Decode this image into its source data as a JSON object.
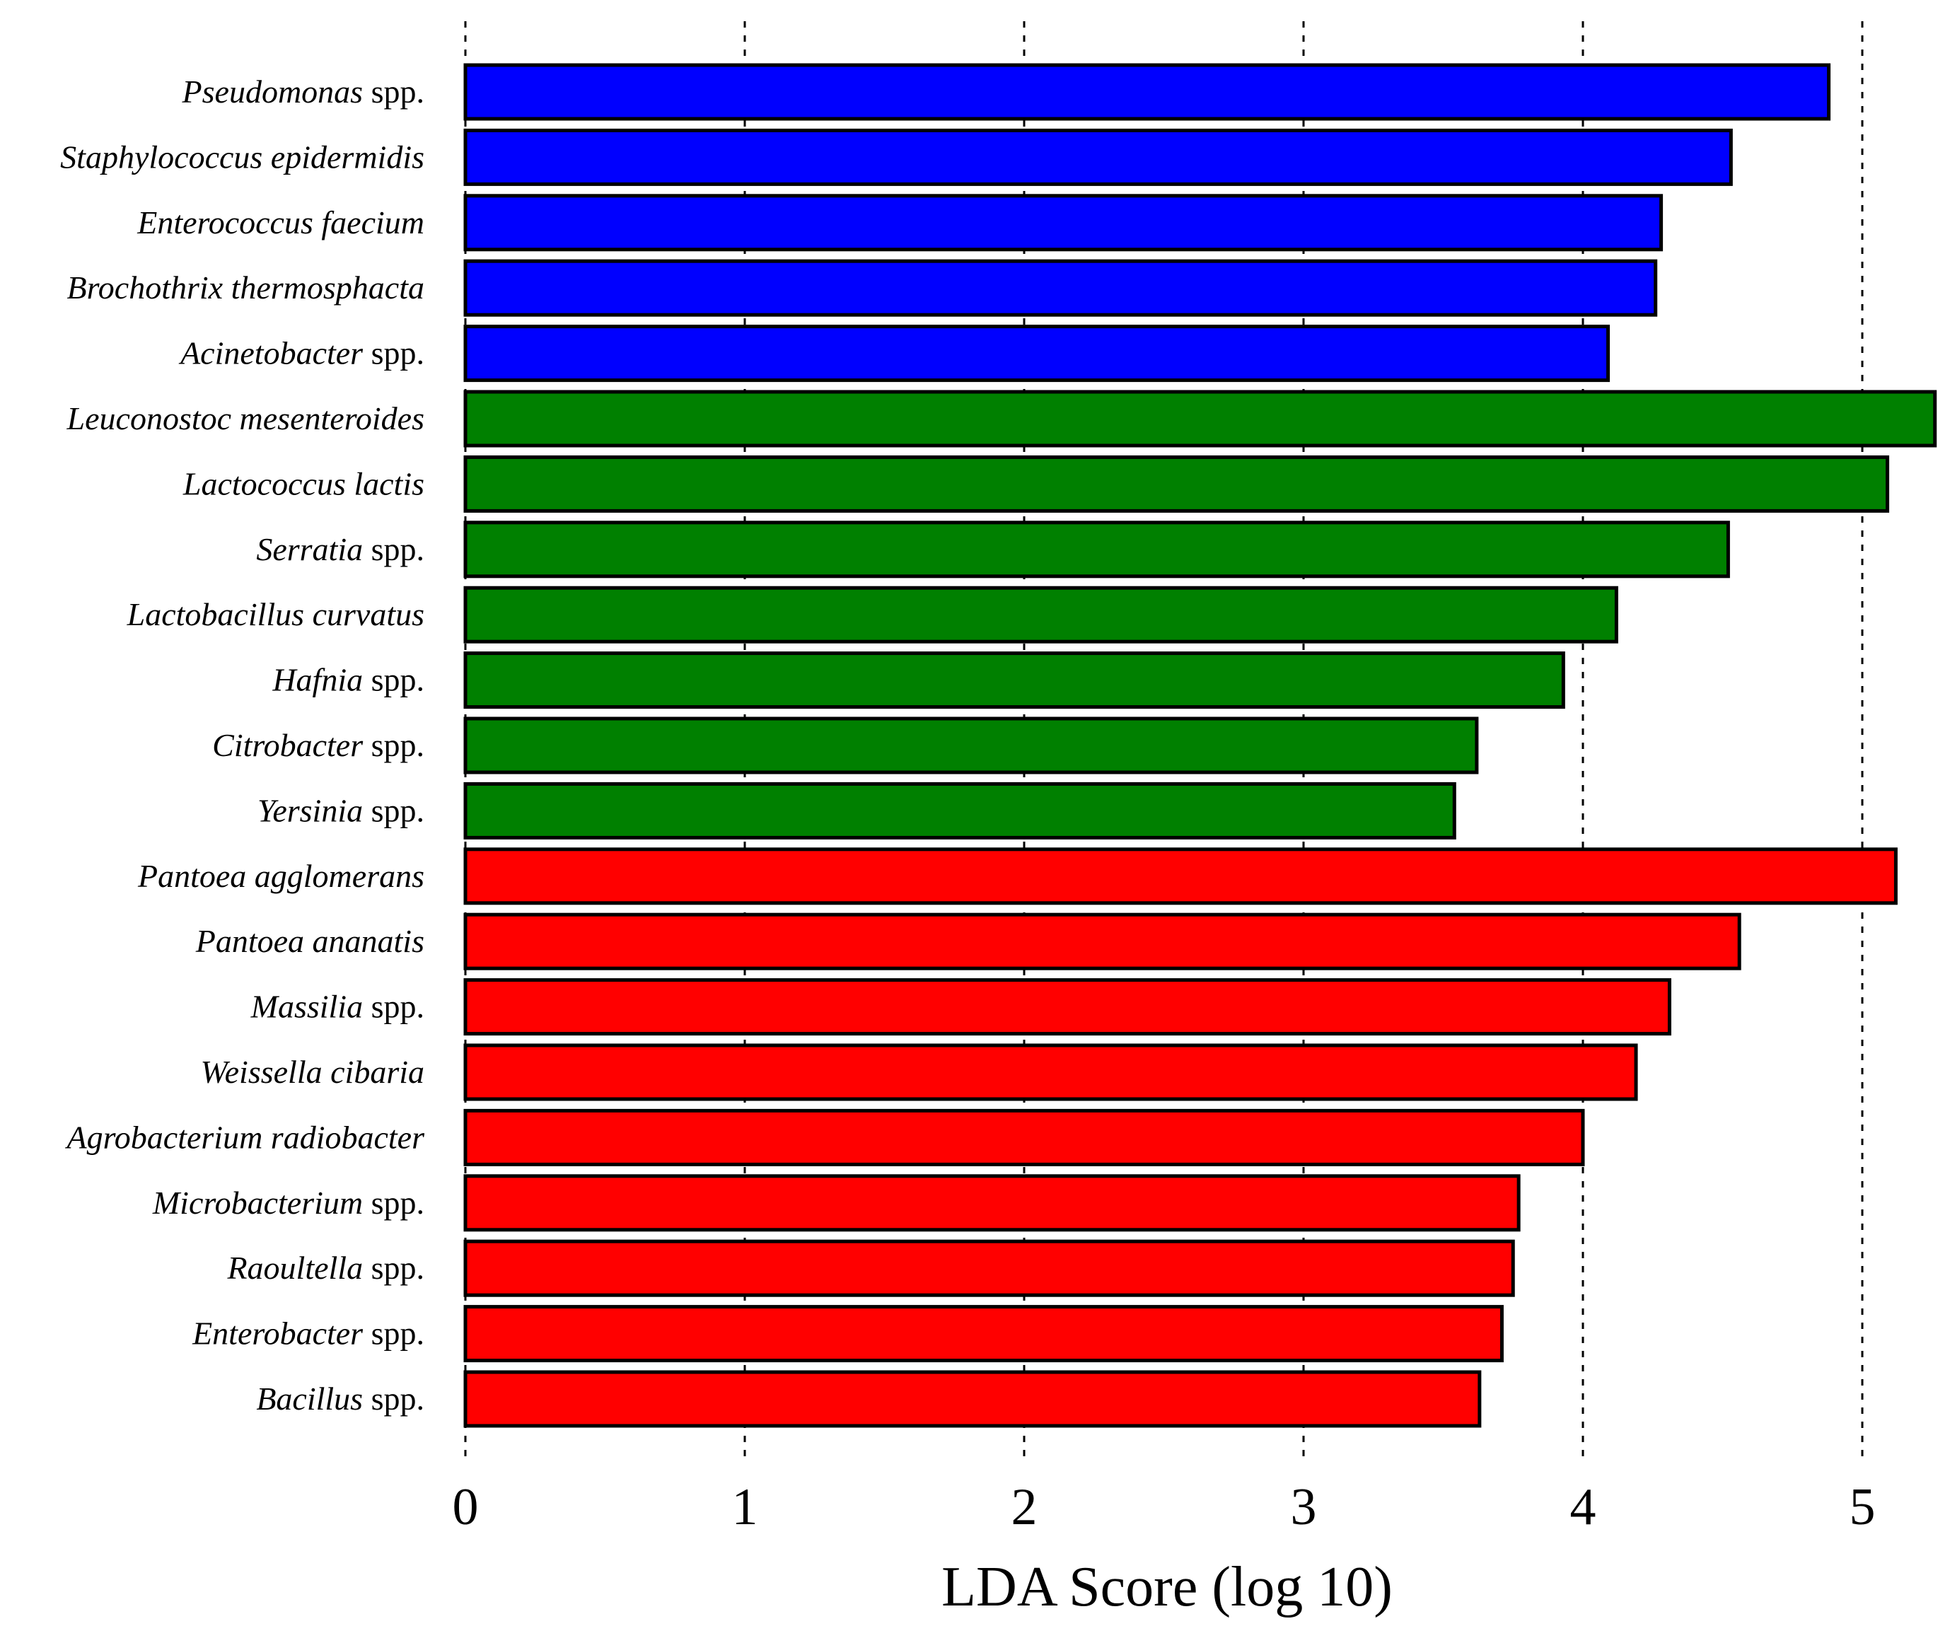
{
  "chart_data": {
    "type": "bar",
    "orientation": "horizontal",
    "xlabel": "LDA Score (log 10)",
    "xlim": [
      0,
      5.3
    ],
    "xticks": [
      0,
      1,
      2,
      3,
      4,
      5
    ],
    "grid": "vertical-dotted",
    "colors": {
      "blue": "#0000ff",
      "green": "#008000",
      "red": "#ff0000"
    },
    "bars": [
      {
        "genus": "Pseudomonas",
        "suffix": " spp.",
        "value": 4.88,
        "group": "blue"
      },
      {
        "genus": "Staphylococcus epidermidis",
        "suffix": "",
        "value": 4.53,
        "group": "blue"
      },
      {
        "genus": "Enterococcus faecium",
        "suffix": "",
        "value": 4.28,
        "group": "blue"
      },
      {
        "genus": "Brochothrix thermosphacta",
        "suffix": "",
        "value": 4.26,
        "group": "blue"
      },
      {
        "genus": "Acinetobacter",
        "suffix": " spp.",
        "value": 4.09,
        "group": "blue"
      },
      {
        "genus": "Leuconostoc mesenteroides",
        "suffix": "",
        "value": 5.26,
        "group": "green"
      },
      {
        "genus": "Lactococcus lactis",
        "suffix": "",
        "value": 5.09,
        "group": "green"
      },
      {
        "genus": "Serratia",
        "suffix": " spp.",
        "value": 4.52,
        "group": "green"
      },
      {
        "genus": "Lactobacillus curvatus",
        "suffix": "",
        "value": 4.12,
        "group": "green"
      },
      {
        "genus": "Hafnia",
        "suffix": " spp.",
        "value": 3.93,
        "group": "green"
      },
      {
        "genus": "Citrobacter",
        "suffix": " spp.",
        "value": 3.62,
        "group": "green"
      },
      {
        "genus": "Yersinia",
        "suffix": " spp.",
        "value": 3.54,
        "group": "green"
      },
      {
        "genus": "Pantoea agglomerans",
        "suffix": "",
        "value": 5.12,
        "group": "red"
      },
      {
        "genus": "Pantoea ananatis",
        "suffix": "",
        "value": 4.56,
        "group": "red"
      },
      {
        "genus": "Massilia",
        "suffix": " spp.",
        "value": 4.31,
        "group": "red"
      },
      {
        "genus": "Weissella cibaria",
        "suffix": "",
        "value": 4.19,
        "group": "red"
      },
      {
        "genus": "Agrobacterium radiobacter",
        "suffix": "",
        "value": 4.0,
        "group": "red"
      },
      {
        "genus": "Microbacterium",
        "suffix": " spp.",
        "value": 3.77,
        "group": "red"
      },
      {
        "genus": "Raoultella",
        "suffix": " spp.",
        "value": 3.75,
        "group": "red"
      },
      {
        "genus": "Enterobacter",
        "suffix": " spp.",
        "value": 3.71,
        "group": "red"
      },
      {
        "genus": "Bacillus",
        "suffix": " spp.",
        "value": 3.63,
        "group": "red"
      }
    ]
  }
}
